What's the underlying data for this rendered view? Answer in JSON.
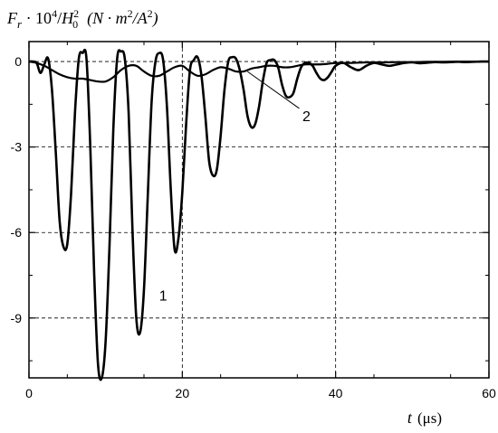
{
  "chart_data": {
    "type": "line",
    "ylabel": {
      "main": "F",
      "sub": "r",
      "mid": " · 10",
      "sup1": "4",
      "slash": "/",
      "h": "H",
      "sub0": "0",
      "sup2": "2",
      "units": "(N · m",
      "sup3": "2",
      "slash2": "/A",
      "sup4": "2",
      "close": ")"
    },
    "xlabel": {
      "var": "t",
      "units": "(μs)"
    },
    "xlim": [
      0,
      60
    ],
    "ylim": [
      -11.1,
      0.7
    ],
    "xticks": [
      0,
      20,
      40,
      60
    ],
    "yticks": [
      0,
      -3,
      -6,
      -9
    ],
    "ytick_labels": [
      "0",
      "-3",
      "-6",
      "-9"
    ],
    "grid": "dashed at x = 20, 40 and y = 0, -3, -6, -9",
    "series": [
      {
        "label": "1",
        "x": [
          0,
          0.5,
          1.0,
          1.5,
          2.0,
          2.5,
          3.0,
          3.5,
          4.0,
          4.5,
          5.0,
          5.5,
          6.0,
          6.5,
          7.0,
          7.5,
          8.0,
          8.5,
          9.0,
          9.5,
          10.0,
          10.5,
          11.0,
          11.5,
          12.0,
          12.5,
          13.0,
          13.5,
          14.0,
          14.5,
          15.0,
          15.5,
          16.0,
          16.5,
          17.0,
          17.5,
          18.0,
          18.5,
          19.0,
          19.5,
          20.0,
          20.5,
          21.0,
          21.5,
          22.0,
          22.5,
          23.0,
          23.5,
          24.0,
          24.5,
          25.0,
          25.5,
          26.0,
          26.5,
          27.0,
          27.5,
          28.0,
          28.5,
          29.0,
          29.5,
          30.0,
          30.5,
          31.0,
          31.5,
          32.0,
          32.5,
          33.0,
          33.5,
          34.0,
          34.5,
          35.0,
          35.5,
          36.0,
          36.5,
          37.0,
          37.5,
          38.0,
          38.5,
          39.0,
          39.5,
          40.0,
          41.0,
          42.0,
          43.0,
          44.0,
          45.0,
          46.0,
          47.0,
          48.0,
          49.0,
          50.0,
          51.0,
          52.0,
          53.0,
          54.0,
          55.0,
          56.0,
          57.0,
          58.0,
          59.0,
          60.0
        ],
        "y": [
          0.0,
          0.0,
          -0.05,
          -0.4,
          -0.1,
          0.1,
          -1.0,
          -3.2,
          -5.6,
          -6.5,
          -6.4,
          -4.6,
          -1.8,
          0.1,
          0.3,
          0.1,
          -3.0,
          -7.4,
          -10.6,
          -11.1,
          -9.8,
          -6.5,
          -2.4,
          0.1,
          0.35,
          0.1,
          -1.8,
          -5.9,
          -9.0,
          -9.5,
          -8.0,
          -4.7,
          -1.4,
          0.0,
          0.3,
          0.05,
          -1.6,
          -4.5,
          -6.6,
          -6.2,
          -4.6,
          -2.2,
          -0.3,
          0.05,
          0.15,
          -0.5,
          -1.9,
          -3.5,
          -4.0,
          -3.8,
          -2.6,
          -1.0,
          0.0,
          0.15,
          0.1,
          -0.3,
          -1.0,
          -1.9,
          -2.3,
          -2.2,
          -1.6,
          -0.7,
          -0.05,
          0.05,
          0.05,
          -0.2,
          -0.8,
          -1.2,
          -1.25,
          -1.1,
          -0.6,
          -0.2,
          -0.05,
          -0.05,
          -0.15,
          -0.4,
          -0.6,
          -0.65,
          -0.55,
          -0.35,
          -0.15,
          -0.05,
          -0.2,
          -0.3,
          -0.15,
          -0.05,
          -0.1,
          -0.15,
          -0.1,
          -0.05,
          -0.03,
          -0.06,
          -0.04,
          -0.02,
          -0.03,
          -0.02,
          -0.01,
          -0.02,
          -0.01,
          0.0,
          0.0
        ]
      },
      {
        "label": "2",
        "x": [
          0,
          1,
          2,
          3,
          4,
          5,
          6,
          7,
          8,
          9,
          10,
          11,
          12,
          13,
          14,
          15,
          16,
          17,
          18,
          19,
          20,
          21,
          22,
          23,
          24,
          25,
          26,
          27,
          28,
          29,
          30,
          31,
          32,
          33,
          34,
          35,
          36,
          37,
          38,
          39,
          40,
          42,
          44,
          46,
          48,
          50,
          52,
          54,
          56,
          58,
          60
        ],
        "y": [
          0.0,
          -0.05,
          -0.15,
          -0.3,
          -0.45,
          -0.55,
          -0.6,
          -0.6,
          -0.65,
          -0.7,
          -0.7,
          -0.55,
          -0.3,
          -0.15,
          -0.15,
          -0.35,
          -0.5,
          -0.5,
          -0.35,
          -0.2,
          -0.15,
          -0.35,
          -0.5,
          -0.45,
          -0.3,
          -0.2,
          -0.25,
          -0.35,
          -0.35,
          -0.25,
          -0.2,
          -0.15,
          -0.15,
          -0.2,
          -0.2,
          -0.15,
          -0.1,
          -0.1,
          -0.1,
          -0.08,
          -0.05,
          -0.05,
          -0.03,
          -0.03,
          -0.02,
          -0.02,
          -0.01,
          -0.01,
          0.0,
          0.0,
          0.0
        ]
      }
    ],
    "annotations": [
      {
        "text": "1",
        "x": 17.5,
        "y": -8.2
      },
      {
        "text": "2",
        "x": 36.2,
        "y": -1.9
      }
    ]
  }
}
